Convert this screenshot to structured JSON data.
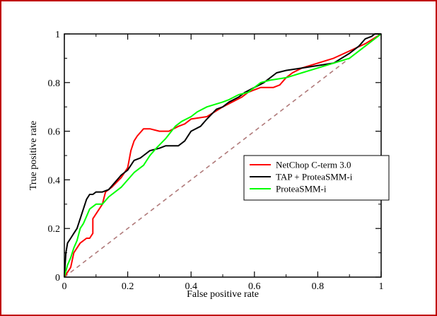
{
  "chart_data": {
    "type": "line",
    "title": "",
    "xlabel": "False positive rate",
    "ylabel": "True positive rate",
    "xlim": [
      0,
      1
    ],
    "ylim": [
      0,
      1
    ],
    "xticks": [
      "0",
      "0.2",
      "0.4",
      "0.6",
      "0.8",
      "1"
    ],
    "yticks": [
      "0",
      "0.2",
      "0.4",
      "0.6",
      "0.8",
      "1"
    ],
    "grid": false,
    "legend_position": "right",
    "series": [
      {
        "name": "NetChop C-term 3.0",
        "color": "#ff0000",
        "dashed": false,
        "x": [
          0,
          0.01,
          0.02,
          0.03,
          0.05,
          0.06,
          0.07,
          0.08,
          0.09,
          0.09,
          0.1,
          0.11,
          0.12,
          0.13,
          0.15,
          0.18,
          0.2,
          0.21,
          0.22,
          0.23,
          0.25,
          0.27,
          0.3,
          0.33,
          0.36,
          0.38,
          0.4,
          0.45,
          0.5,
          0.53,
          0.56,
          0.58,
          0.6,
          0.62,
          0.64,
          0.66,
          0.68,
          0.7,
          0.72,
          0.75,
          0.8,
          0.85,
          0.9,
          0.95,
          1.0
        ],
        "y": [
          0,
          0.02,
          0.04,
          0.1,
          0.14,
          0.15,
          0.16,
          0.16,
          0.18,
          0.24,
          0.26,
          0.28,
          0.3,
          0.35,
          0.37,
          0.41,
          0.45,
          0.52,
          0.56,
          0.58,
          0.61,
          0.61,
          0.6,
          0.6,
          0.62,
          0.63,
          0.65,
          0.66,
          0.7,
          0.72,
          0.74,
          0.76,
          0.77,
          0.78,
          0.78,
          0.78,
          0.79,
          0.82,
          0.84,
          0.86,
          0.88,
          0.9,
          0.93,
          0.96,
          1.0
        ]
      },
      {
        "name": "TAP + ProteaSMM-i",
        "color": "#000000",
        "dashed": false,
        "x": [
          0,
          0.005,
          0.01,
          0.02,
          0.03,
          0.04,
          0.05,
          0.06,
          0.07,
          0.08,
          0.09,
          0.1,
          0.12,
          0.14,
          0.16,
          0.18,
          0.2,
          0.22,
          0.24,
          0.25,
          0.27,
          0.3,
          0.32,
          0.34,
          0.36,
          0.38,
          0.4,
          0.43,
          0.45,
          0.48,
          0.5,
          0.52,
          0.55,
          0.57,
          0.6,
          0.63,
          0.65,
          0.67,
          0.7,
          0.75,
          0.8,
          0.85,
          0.9,
          0.93,
          0.95,
          0.97,
          0.98,
          1.0
        ],
        "y": [
          0,
          0.1,
          0.14,
          0.16,
          0.18,
          0.2,
          0.24,
          0.28,
          0.32,
          0.34,
          0.34,
          0.35,
          0.35,
          0.36,
          0.39,
          0.42,
          0.44,
          0.48,
          0.49,
          0.5,
          0.52,
          0.53,
          0.54,
          0.54,
          0.54,
          0.56,
          0.6,
          0.62,
          0.65,
          0.69,
          0.7,
          0.72,
          0.74,
          0.76,
          0.78,
          0.8,
          0.82,
          0.84,
          0.85,
          0.86,
          0.87,
          0.88,
          0.92,
          0.95,
          0.98,
          0.99,
          1.0,
          1.0
        ]
      },
      {
        "name": "ProteaSMM-i",
        "color": "#00ff00",
        "dashed": false,
        "x": [
          0,
          0.01,
          0.02,
          0.03,
          0.04,
          0.05,
          0.06,
          0.07,
          0.08,
          0.1,
          0.12,
          0.14,
          0.16,
          0.18,
          0.2,
          0.22,
          0.25,
          0.27,
          0.29,
          0.32,
          0.35,
          0.37,
          0.4,
          0.42,
          0.45,
          0.5,
          0.52,
          0.55,
          0.58,
          0.6,
          0.62,
          0.65,
          0.7,
          0.75,
          0.8,
          0.85,
          0.9,
          0.95,
          1.0
        ],
        "y": [
          0,
          0.05,
          0.08,
          0.12,
          0.15,
          0.2,
          0.22,
          0.25,
          0.28,
          0.3,
          0.3,
          0.33,
          0.35,
          0.37,
          0.4,
          0.43,
          0.46,
          0.5,
          0.53,
          0.57,
          0.62,
          0.64,
          0.66,
          0.68,
          0.7,
          0.72,
          0.73,
          0.75,
          0.76,
          0.78,
          0.8,
          0.81,
          0.82,
          0.84,
          0.86,
          0.88,
          0.9,
          0.95,
          1.0
        ]
      },
      {
        "name": "",
        "color": "#b07a7a",
        "dashed": true,
        "x": [
          0,
          1
        ],
        "y": [
          0,
          1
        ]
      }
    ]
  }
}
